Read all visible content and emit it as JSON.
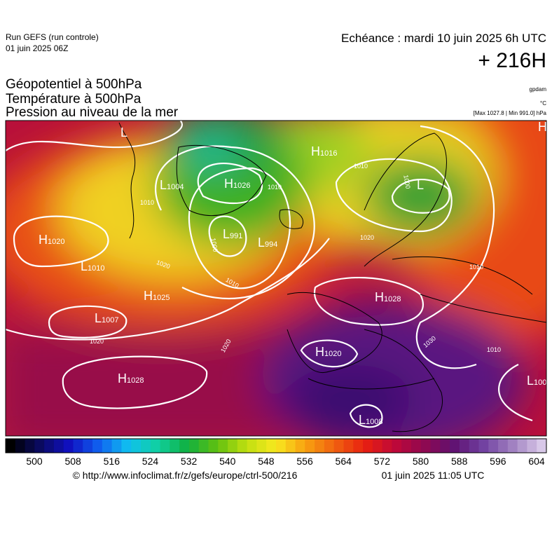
{
  "header": {
    "run": "Run GEFS (run controle)",
    "run_date": "01 juin 2025 06Z",
    "echeance": "Echéance : mardi 10 juin 2025 6h UTC",
    "lead": "+ 216H"
  },
  "titles": [
    "Géopotentiel à 500hPa",
    "Température à 500hPa",
    "Pression au niveau de la mer"
  ],
  "units": {
    "geopotential": "gpdam",
    "temperature": "°C",
    "pressure": "[Max 1027.8 | Min 991.0] hPa"
  },
  "map": {
    "centers": [
      {
        "type": "L"
      },
      {
        "type": "H",
        "pressure": 1016
      },
      {
        "type": "L",
        "pressure": 1004
      },
      {
        "type": "H",
        "pressure": 1026
      },
      {
        "type": "L",
        "pressure": 991
      },
      {
        "type": "L",
        "pressure": 994
      },
      {
        "type": "H",
        "pressure": 1020
      },
      {
        "type": "L",
        "pressure": 1010
      },
      {
        "type": "H",
        "pressure": 1025
      },
      {
        "type": "L",
        "pressure": 1007
      },
      {
        "type": "H",
        "pressure": 1028
      },
      {
        "type": "H",
        "pressure": 1020
      },
      {
        "type": "H",
        "pressure": 1028
      },
      {
        "type": "L",
        "pressure": 1008
      },
      {
        "type": "L",
        "pressure": 100
      },
      {
        "type": "H"
      },
      {
        "type": "L"
      }
    ],
    "isobar_labels": [
      1010,
      1020,
      1010,
      1000,
      1010,
      1020,
      1020,
      1010,
      1000,
      1020,
      1010,
      1010,
      1030
    ]
  },
  "colorbar": {
    "ticks": [
      500,
      508,
      516,
      524,
      532,
      540,
      548,
      556,
      564,
      572,
      580,
      588,
      596,
      604
    ],
    "colors": [
      "#000000",
      "#0a0a60",
      "#1010c0",
      "#1060f0",
      "#10c0f0",
      "#10d0a0",
      "#10b040",
      "#60c010",
      "#c0e010",
      "#f8e820",
      "#f8a010",
      "#f06010",
      "#e82010",
      "#c00838",
      "#900850",
      "#601070",
      "#7040a0",
      "#a080c0",
      "#d8c8e8"
    ]
  },
  "footer": {
    "source": "© http://www.infoclimat.fr/z/gefs/europe/ctrl-500/216",
    "generated": "01 juin 2025 11:05 UTC"
  }
}
